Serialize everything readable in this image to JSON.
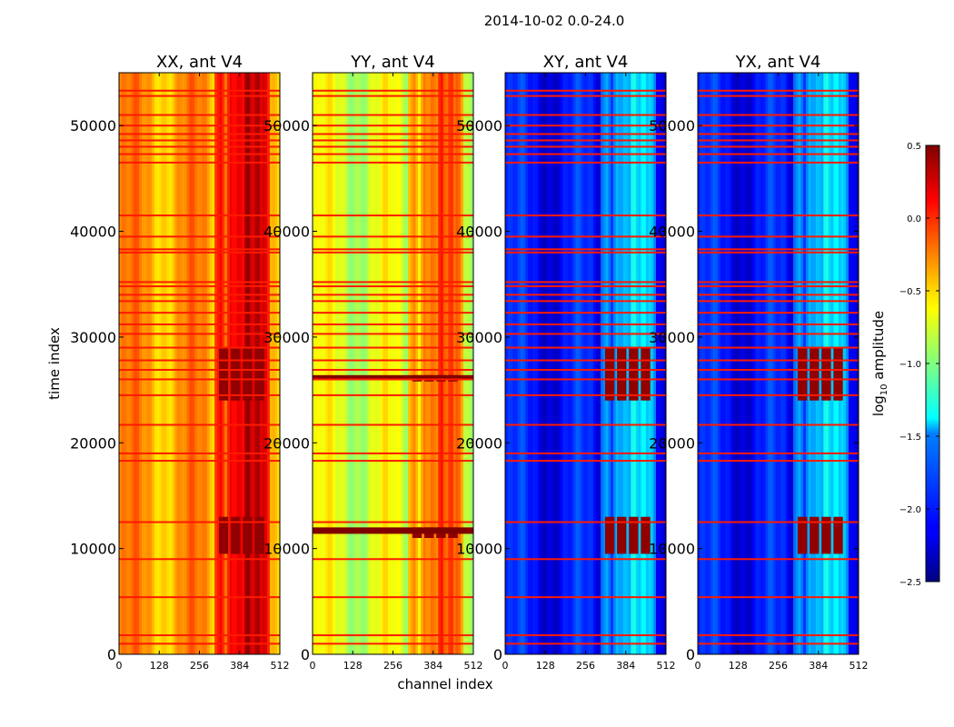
{
  "chart_data": {
    "type": "heatmap",
    "suptitle": "2014-10-02 0.0-24.0",
    "xlabel": "channel index",
    "ylabel": "time index",
    "xlim": [
      0,
      512
    ],
    "ylim": [
      0,
      55000
    ],
    "xticks": [
      0,
      128,
      256,
      384,
      512
    ],
    "yticks": [
      0,
      10000,
      20000,
      30000,
      40000,
      50000
    ],
    "panels": [
      {
        "title": "XX, ant V4",
        "baseline_log10": -0.35,
        "dark_bands_time_ranges": [
          [
            9500,
            13000
          ],
          [
            24000,
            29000
          ]
        ]
      },
      {
        "title": "YY, ant V4",
        "baseline_log10": -0.75,
        "dark_bands_time_ranges": [
          [
            11000,
            12000
          ],
          [
            25800,
            26400
          ]
        ]
      },
      {
        "title": "XY, ant V4",
        "baseline_log10": -2.1,
        "dark_bands_time_ranges": [
          [
            9500,
            13000
          ],
          [
            24000,
            29000
          ]
        ]
      },
      {
        "title": "YX, ant V4",
        "baseline_log10": -2.1,
        "dark_bands_time_ranges": [
          [
            9500,
            13000
          ],
          [
            24000,
            29000
          ]
        ]
      }
    ],
    "flagged_time_rows": [
      1000,
      1800,
      5400,
      9000,
      12500,
      18300,
      19000,
      21700,
      24500,
      26000,
      26900,
      27800,
      29000,
      30300,
      31200,
      32300,
      33400,
      34000,
      34800,
      35200,
      38000,
      38300,
      39500,
      41500,
      46500,
      47300,
      48000,
      48600,
      49200,
      50000,
      51000,
      52800,
      53300
    ],
    "colorbar": {
      "label": "log",
      "label_sub": "10",
      "label_rest": " amplitude",
      "range": [
        -2.5,
        0.5
      ],
      "ticks": [
        "0.5",
        "0.0",
        "−0.5",
        "−1.0",
        "−1.5",
        "−2.0",
        "−2.5"
      ],
      "tick_values": [
        0.5,
        0.0,
        -0.5,
        -1.0,
        -1.5,
        -2.0,
        -2.5
      ],
      "colormap": "jet"
    }
  }
}
